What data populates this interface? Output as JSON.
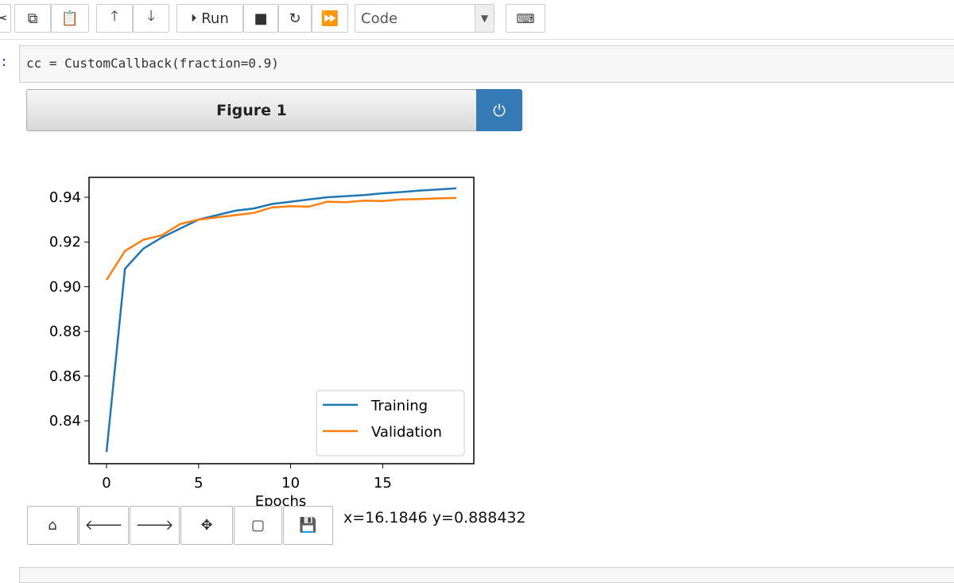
{
  "toolbar": {
    "run": "Run",
    "cell_type": "Code"
  },
  "cell": {
    "prompt": ":",
    "code": "cc = CustomCallback(fraction=0.9)"
  },
  "figure": {
    "title": "Figure 1",
    "status": "x=16.1846 y=0.888432"
  },
  "chart_data": {
    "type": "line",
    "xlabel": "Epochs",
    "x": [
      0,
      1,
      2,
      3,
      4,
      5,
      6,
      7,
      8,
      9,
      10,
      11,
      12,
      13,
      14,
      15,
      16,
      17,
      18,
      19
    ],
    "series": [
      {
        "name": "Training",
        "color": "#1f77b4",
        "values": [
          0.826,
          0.908,
          0.917,
          0.922,
          0.926,
          0.93,
          0.932,
          0.934,
          0.935,
          0.937,
          0.938,
          0.939,
          0.94,
          0.9405,
          0.941,
          0.9418,
          0.9423,
          0.943,
          0.9435,
          0.944
        ]
      },
      {
        "name": "Validation",
        "color": "#ff7f0e",
        "values": [
          0.903,
          0.916,
          0.921,
          0.923,
          0.928,
          0.93,
          0.931,
          0.932,
          0.933,
          0.9355,
          0.936,
          0.9358,
          0.938,
          0.9378,
          0.9385,
          0.9383,
          0.939,
          0.9392,
          0.9395,
          0.9397
        ]
      }
    ],
    "xlim": [
      -0.95,
      19.95
    ],
    "xticks": [
      0,
      5,
      10,
      15
    ],
    "ylim": [
      0.8208,
      0.9489
    ],
    "yticks": [
      0.84,
      0.86,
      0.88,
      0.9,
      0.92,
      0.94
    ],
    "legend": "lower right"
  }
}
